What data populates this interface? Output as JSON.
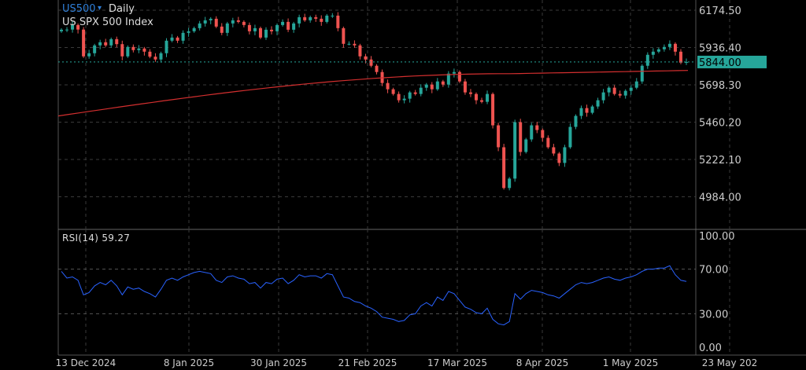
{
  "header": {
    "symbol": "US500",
    "interval": "Daily",
    "description": "US SPX 500 Index",
    "dropdown_icon": "caret-down-icon"
  },
  "price_pane": {
    "y_ticks": [
      "6174.50",
      "5936.40",
      "5698.30",
      "5460.20",
      "5222.10",
      "4984.00"
    ],
    "last_price": "5844.00",
    "last_price_color": "#26a69a",
    "up_color": "#26a69a",
    "down_color": "#ef5350",
    "ma_color": "#d32f2f"
  },
  "rsi_pane": {
    "label": "RSI(14) 59.27",
    "y_ticks": [
      "100.00",
      "70.00",
      "30.00",
      "0.00"
    ],
    "line_color": "#2962ff"
  },
  "x_ticks": [
    "13 Dec 2024",
    "8 Jan 2025",
    "30 Jan 2025",
    "21 Feb 2025",
    "17 Mar 2025",
    "8 Apr 2025",
    "1 May 2025",
    "23 May 202"
  ],
  "chart_data": [
    {
      "type": "candlestick",
      "title": "US SPX 500 Index",
      "series": [
        {
          "name": "US500",
          "close": [
            6050,
            6051,
            6080,
            6051,
            5880,
            5900,
            5950,
            5970,
            5950,
            5990,
            5958,
            5880,
            5940,
            5920,
            5930,
            5910,
            5878,
            5860,
            5900,
            5980,
            6000,
            5980,
            6030,
            6040,
            6060,
            6090,
            6110,
            6120,
            6070,
            6030,
            6090,
            6110,
            6100,
            6080,
            6040,
            6060,
            6000,
            6050,
            6040,
            6080,
            6100,
            6050,
            6090,
            6130,
            6110,
            6130,
            6120,
            6100,
            6140,
            6140,
            6060,
            5960,
            5960,
            5950,
            5880,
            5860,
            5820,
            5780,
            5710,
            5670,
            5640,
            5600,
            5610,
            5650,
            5640,
            5680,
            5700,
            5670,
            5720,
            5700,
            5770,
            5780,
            5720,
            5650,
            5640,
            5600,
            5590,
            5640,
            5440,
            5300,
            5040,
            5100,
            5460,
            5270,
            5350,
            5440,
            5410,
            5360,
            5300,
            5260,
            5200,
            5300,
            5430,
            5500,
            5550,
            5520,
            5560,
            5600,
            5650,
            5680,
            5640,
            5630,
            5660,
            5680,
            5720,
            5820,
            5890,
            5910,
            5925,
            5940,
            5960,
            5910,
            5840,
            5844
          ]
        },
        {
          "name": "MA",
          "values": [
            5500,
            5790
          ]
        }
      ],
      "ylabel": "",
      "xlabel": "",
      "y_ticks": [
        6174.5,
        5936.4,
        5698.3,
        5460.2,
        5222.1,
        4984.0
      ],
      "ylim": [
        4800,
        6240
      ],
      "last_value": 5844.0,
      "grid": true
    },
    {
      "type": "line",
      "title": "RSI(14) 59.27",
      "series": [
        {
          "name": "RSI(14)",
          "values": [
            68,
            62,
            63,
            60,
            47,
            49,
            55,
            58,
            56,
            60,
            55,
            47,
            54,
            52,
            53,
            50,
            48,
            45,
            52,
            60,
            62,
            60,
            63,
            65,
            67,
            68,
            67,
            66,
            60,
            58,
            63,
            64,
            62,
            61,
            57,
            58,
            53,
            58,
            57,
            61,
            62,
            57,
            60,
            65,
            63,
            64,
            64,
            62,
            66,
            65,
            55,
            45,
            44,
            41,
            40,
            37,
            35,
            32,
            27,
            26,
            25,
            23,
            24,
            29,
            30,
            37,
            40,
            37,
            45,
            42,
            50,
            48,
            42,
            36,
            34,
            31,
            30,
            35,
            25,
            21,
            20,
            23,
            48,
            43,
            48,
            51,
            50,
            49,
            47,
            46,
            44,
            48,
            52,
            56,
            58,
            57,
            58,
            60,
            62,
            63,
            61,
            60,
            62,
            63,
            65,
            68,
            70,
            70,
            71,
            71,
            73,
            65,
            60,
            59
          ]
        }
      ],
      "y_ticks": [
        100,
        70,
        30,
        0
      ],
      "ylim": [
        0,
        100
      ],
      "grid": true
    }
  ]
}
